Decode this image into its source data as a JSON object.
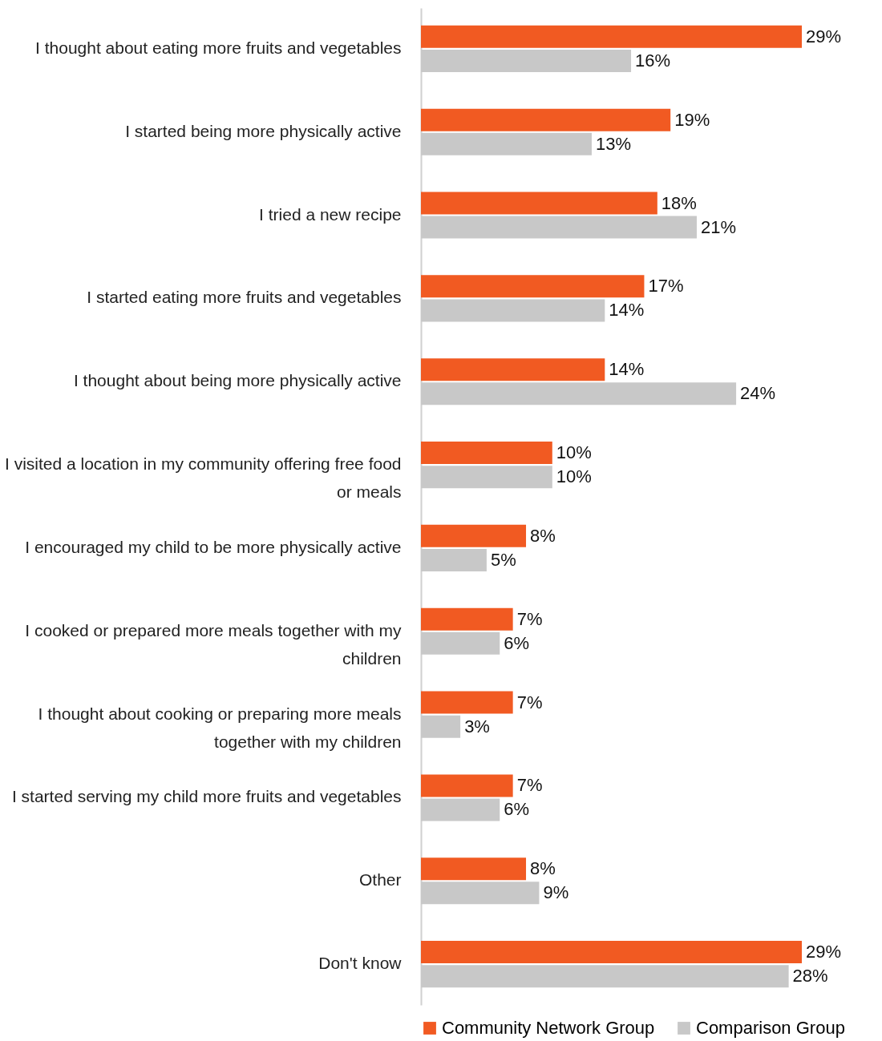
{
  "chart_data": {
    "type": "bar",
    "orientation": "horizontal",
    "legend": "bottom",
    "categories": [
      "I thought about eating more fruits and vegetables",
      "I started being more physically active",
      "I tried a new recipe",
      "I started eating more fruits and vegetables",
      "I thought about being more physically active",
      "I visited a location in my community offering free food or meals",
      "I encouraged my child to be more physically active",
      "I cooked or prepared more meals together with my children",
      "I thought about cooking or preparing more meals together with my children",
      "I started serving my child more fruits and vegetables",
      "Other",
      "Don't know"
    ],
    "series": [
      {
        "name": "Community Network Group",
        "color": "#f15a22",
        "values": [
          29,
          19,
          18,
          17,
          14,
          10,
          8,
          7,
          7,
          7,
          8,
          29
        ],
        "value_labels": [
          "29%",
          "19%",
          "18%",
          "17%",
          "14%",
          "10%",
          "8%",
          "7%",
          "7%",
          "7%",
          "8%",
          "29%"
        ]
      },
      {
        "name": "Comparison Group",
        "color": "#c8c8c8",
        "values": [
          16,
          13,
          21,
          14,
          24,
          10,
          5,
          6,
          3,
          6,
          9,
          28
        ],
        "value_labels": [
          "16%",
          "13%",
          "21%",
          "14%",
          "24%",
          "10%",
          "5%",
          "6%",
          "3%",
          "6%",
          "9%",
          "28%"
        ]
      }
    ]
  }
}
